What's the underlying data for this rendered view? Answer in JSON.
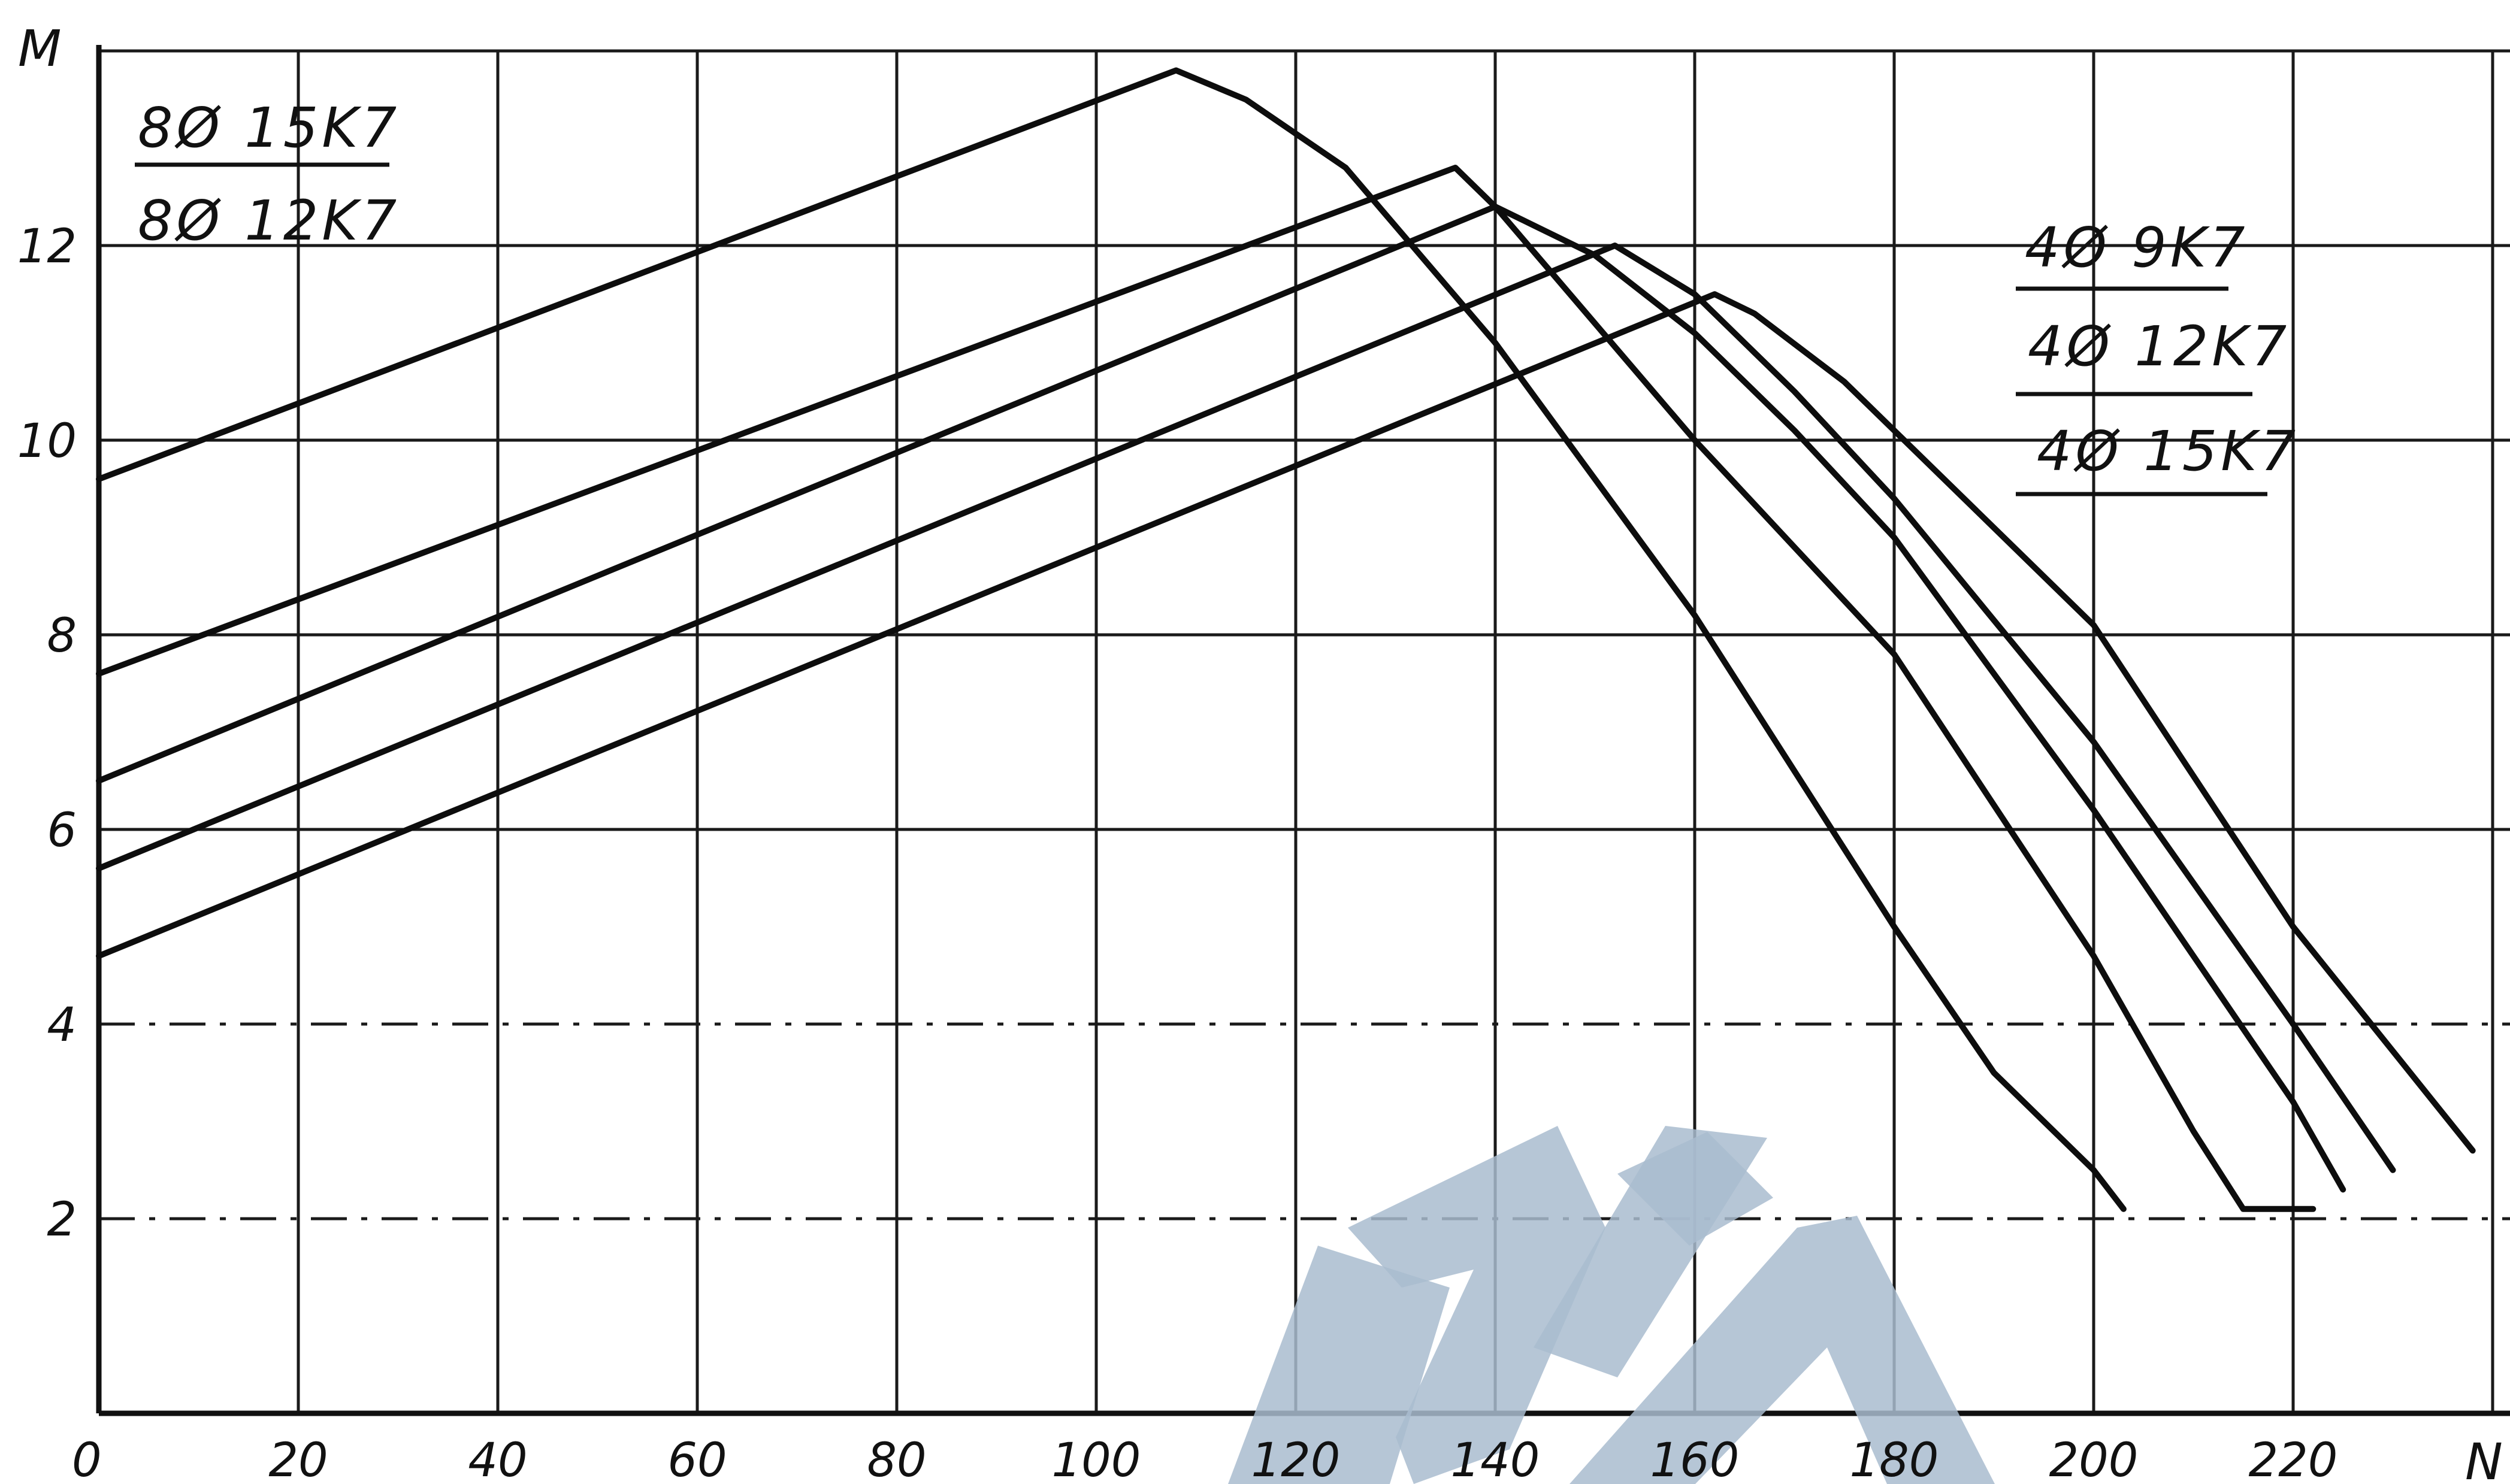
{
  "chart_data": {
    "type": "line",
    "title": "",
    "xlabel": "N",
    "ylabel": "M",
    "xlim": [
      0,
      240
    ],
    "ylim": [
      0,
      14
    ],
    "xticks": [
      0,
      20,
      40,
      60,
      80,
      100,
      120,
      140,
      160,
      180,
      200,
      220
    ],
    "yticks": [
      2,
      4,
      6,
      8,
      10,
      12
    ],
    "xtick_labels": [
      "0",
      "20",
      "40",
      "60",
      "80",
      "100",
      "120",
      "140",
      "160",
      "180",
      "200",
      "220"
    ],
    "ytick_labels": [
      "2",
      "4",
      "6",
      "8",
      "10",
      "12"
    ],
    "grid": true,
    "legend_groups": [
      {
        "position": "top-left",
        "labels": [
          "8Ø 15K7",
          "8Ø 12K7"
        ]
      },
      {
        "position": "top-right",
        "labels": [
          "4Ø 9K7",
          "4Ø 12K7",
          "4Ø 15K7"
        ]
      }
    ],
    "series": [
      {
        "x": [
          0,
          108,
          115,
          125,
          140,
          160,
          180,
          190,
          200,
          203
        ],
        "y": [
          9.6,
          13.8,
          13.5,
          12.8,
          11.0,
          8.2,
          5.0,
          3.5,
          2.5,
          2.1
        ]
      },
      {
        "x": [
          0,
          136,
          140,
          150,
          160,
          180,
          200,
          210,
          215,
          222
        ],
        "y": [
          7.6,
          12.8,
          12.4,
          11.2,
          10.0,
          7.8,
          4.7,
          2.9,
          2.1,
          2.1
        ]
      },
      {
        "x": [
          0,
          140,
          150,
          160,
          170,
          180,
          200,
          220,
          225
        ],
        "y": [
          6.5,
          12.4,
          11.9,
          11.1,
          10.1,
          9.0,
          6.2,
          3.2,
          2.3
        ]
      },
      {
        "x": [
          0,
          152,
          160,
          170,
          180,
          200,
          220,
          230
        ],
        "y": [
          5.6,
          12.0,
          11.5,
          10.5,
          9.4,
          6.9,
          4.0,
          2.5
        ]
      },
      {
        "x": [
          0,
          162,
          166,
          175,
          180,
          200,
          220,
          238
        ],
        "y": [
          4.7,
          11.5,
          11.3,
          10.6,
          10.1,
          8.1,
          5.0,
          2.7
        ]
      }
    ]
  },
  "watermark": {
    "color": "#a9bccf"
  }
}
